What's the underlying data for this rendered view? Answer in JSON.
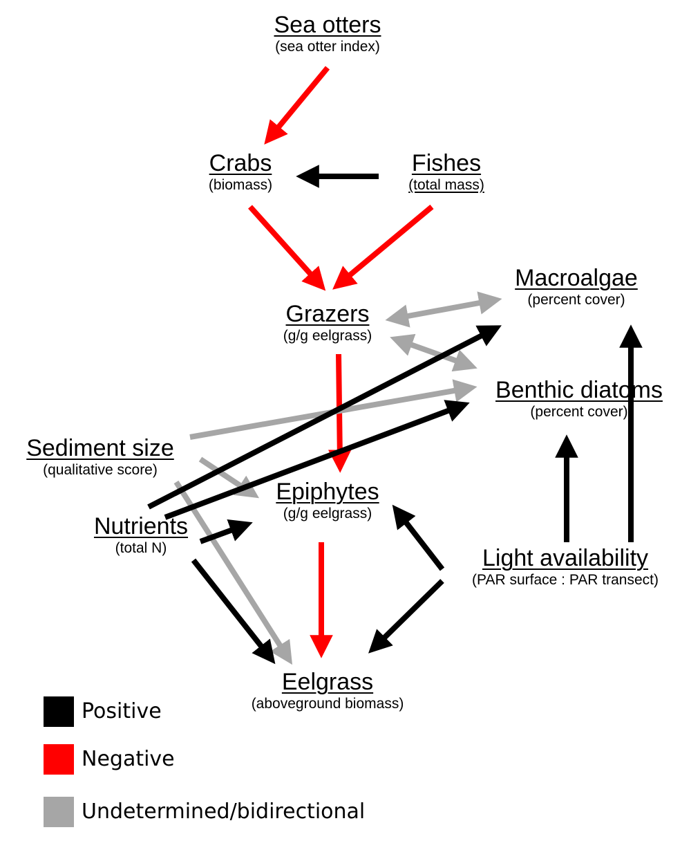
{
  "colors": {
    "positive": "#000000",
    "negative": "#ff0000",
    "undetermined": "#a6a6a6"
  },
  "nodes": {
    "sea_otters": {
      "title": "Sea otters",
      "sub": "(sea otter index)"
    },
    "crabs": {
      "title": "Crabs",
      "sub": "(biomass)"
    },
    "fishes": {
      "title": "Fishes",
      "sub": "(total mass)"
    },
    "grazers": {
      "title": "Grazers",
      "sub": "(g/g eelgrass)"
    },
    "macroalgae": {
      "title": "Macroalgae",
      "sub": "(percent cover)"
    },
    "benthic_diatoms": {
      "title": "Benthic diatoms",
      "sub": "(percent cover)"
    },
    "sediment_size": {
      "title": "Sediment size",
      "sub": "(qualitative score)"
    },
    "epiphytes": {
      "title": "Epiphytes",
      "sub": "(g/g eelgrass)"
    },
    "nutrients": {
      "title": "Nutrients",
      "sub": "(total N)"
    },
    "light_availability": {
      "title": "Light availability",
      "sub": "(PAR surface : PAR transect)"
    },
    "eelgrass": {
      "title": "Eelgrass",
      "sub": "(aboveground biomass)"
    }
  },
  "edges": [
    {
      "from": "sea_otters",
      "to": "crabs",
      "effect": "negative"
    },
    {
      "from": "fishes",
      "to": "crabs",
      "effect": "positive"
    },
    {
      "from": "crabs",
      "to": "grazers",
      "effect": "negative"
    },
    {
      "from": "fishes",
      "to": "grazers",
      "effect": "negative"
    },
    {
      "from": "grazers",
      "to": "macroalgae",
      "effect": "undetermined",
      "bidirectional": true
    },
    {
      "from": "grazers",
      "to": "benthic_diatoms",
      "effect": "undetermined",
      "bidirectional": true
    },
    {
      "from": "grazers",
      "to": "epiphytes",
      "effect": "negative"
    },
    {
      "from": "sediment_size",
      "to": "benthic_diatoms",
      "effect": "undetermined"
    },
    {
      "from": "sediment_size",
      "to": "epiphytes",
      "effect": "undetermined"
    },
    {
      "from": "sediment_size",
      "to": "eelgrass",
      "effect": "undetermined"
    },
    {
      "from": "nutrients",
      "to": "macroalgae",
      "effect": "positive"
    },
    {
      "from": "nutrients",
      "to": "benthic_diatoms",
      "effect": "positive"
    },
    {
      "from": "nutrients",
      "to": "epiphytes",
      "effect": "positive"
    },
    {
      "from": "nutrients",
      "to": "eelgrass",
      "effect": "positive"
    },
    {
      "from": "epiphytes",
      "to": "eelgrass",
      "effect": "negative"
    },
    {
      "from": "light_availability",
      "to": "epiphytes",
      "effect": "positive"
    },
    {
      "from": "light_availability",
      "to": "eelgrass",
      "effect": "positive"
    },
    {
      "from": "light_availability",
      "to": "benthic_diatoms",
      "effect": "positive"
    },
    {
      "from": "light_availability",
      "to": "macroalgae",
      "effect": "positive"
    }
  ],
  "legend": [
    {
      "label": "Positive",
      "color": "#000000"
    },
    {
      "label": "Negative",
      "color": "#ff0000"
    },
    {
      "label": "Undetermined/bidirectional",
      "color": "#a6a6a6"
    }
  ]
}
